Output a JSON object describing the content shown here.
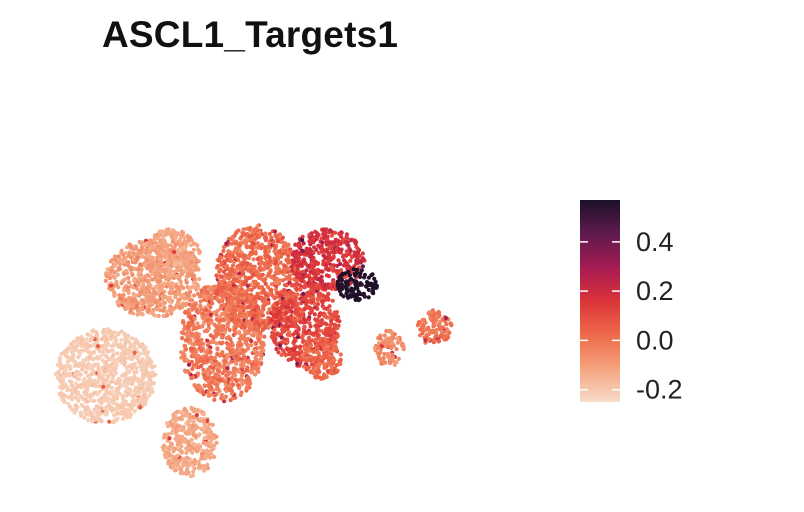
{
  "title": "ASCL1_Targets1",
  "colors": {
    "low": "#f8dcc9",
    "mid_low": "#f2865f",
    "mid": "#e23a35",
    "mid_high": "#a51b53",
    "high": "#1c1128",
    "background": "#ffffff"
  },
  "chart_data": {
    "type": "scatter",
    "title": "ASCL1_Targets1",
    "xlabel": "",
    "ylabel": "",
    "grid": false,
    "axes_visible": false,
    "color_scale": {
      "type": "continuous",
      "min": -0.25,
      "max": 0.57,
      "ticks": [
        -0.2,
        0.0,
        0.2,
        0.4
      ],
      "tick_labels": [
        "-0.2",
        "0.0",
        "0.2",
        "0.4"
      ],
      "palette": [
        "#f8dcc9",
        "#f4a27e",
        "#ee6a4a",
        "#dc3339",
        "#a51b53",
        "#5e1a4c",
        "#1c1128"
      ]
    },
    "legend": {
      "position": "right"
    },
    "clusters": [
      {
        "center": [
          0.167,
          0.317
        ],
        "radii": [
          0.1,
          0.115
        ],
        "mean_score": -0.21,
        "spread": 0.015
      },
      {
        "center": [
          0.335,
          0.155
        ],
        "radii": [
          0.055,
          0.085
        ],
        "mean_score": -0.13,
        "spread": 0.03
      },
      {
        "center": [
          0.262,
          0.555
        ],
        "radii": [
          0.095,
          0.095
        ],
        "mean_score": -0.1,
        "spread": 0.04
      },
      {
        "center": [
          0.298,
          0.615
        ],
        "radii": [
          0.06,
          0.06
        ],
        "mean_score": -0.12,
        "spread": 0.03
      },
      {
        "center": [
          0.4,
          0.4
        ],
        "radii": [
          0.085,
          0.145
        ],
        "mean_score": -0.02,
        "spread": 0.05
      },
      {
        "center": [
          0.47,
          0.555
        ],
        "radii": [
          0.085,
          0.13
        ],
        "mean_score": 0.02,
        "spread": 0.05
      },
      {
        "center": [
          0.565,
          0.445
        ],
        "radii": [
          0.07,
          0.105
        ],
        "mean_score": 0.11,
        "spread": 0.05
      },
      {
        "center": [
          0.61,
          0.6
        ],
        "radii": [
          0.075,
          0.075
        ],
        "mean_score": 0.17,
        "spread": 0.06
      },
      {
        "center": [
          0.67,
          0.54
        ],
        "radii": [
          0.04,
          0.04
        ],
        "mean_score": 0.56,
        "spread": 0.02
      },
      {
        "center": [
          0.6,
          0.36
        ],
        "radii": [
          0.04,
          0.05
        ],
        "mean_score": 0.03,
        "spread": 0.04
      },
      {
        "center": [
          0.735,
          0.385
        ],
        "radii": [
          0.03,
          0.045
        ],
        "mean_score": -0.06,
        "spread": 0.04
      },
      {
        "center": [
          0.825,
          0.435
        ],
        "radii": [
          0.035,
          0.045
        ],
        "mean_score": 0.0,
        "spread": 0.04
      }
    ]
  }
}
